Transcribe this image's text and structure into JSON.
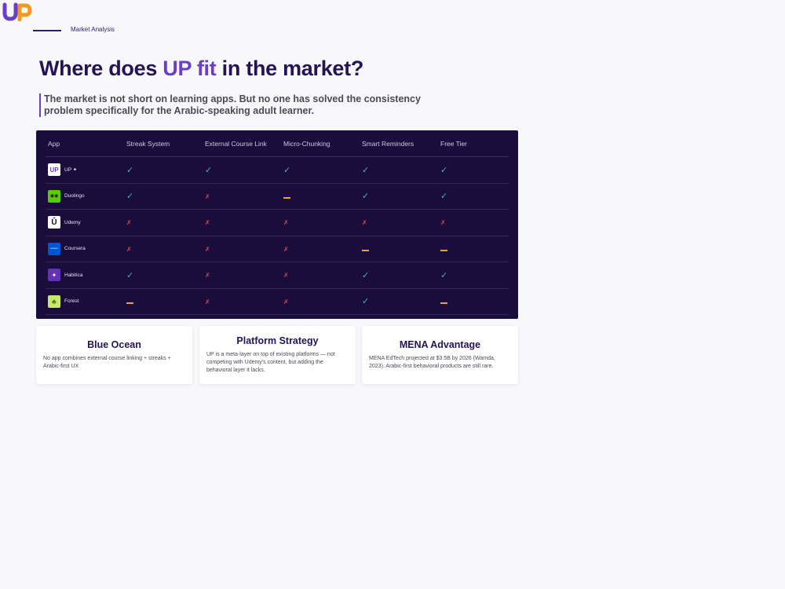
{
  "brand": {
    "logo_text": "UP",
    "colors": {
      "purple": "#6a3fc7",
      "orange": "#f39a1e",
      "dark": "#241453"
    }
  },
  "header": {
    "section_label": "Market Analysis",
    "title_before": "Where does ",
    "title_highlight": "UP fit",
    "title_after": " in the market?",
    "subtitle": "The market is not short on learning apps. But no one has solved the consistency problem specifically for the Arabic-speaking adult learner."
  },
  "table": {
    "columns": [
      "App",
      "Streak System",
      "External Course Link",
      "Micro-Chunking",
      "Smart Reminders",
      "Free Tier"
    ],
    "marks": {
      "yes": "✓",
      "no": "✗",
      "partial": ""
    },
    "rows": [
      {
        "app": "UP ✦",
        "icon": "up-logo-icon",
        "icon_text": "UP",
        "icon_color": "#ffffff",
        "values": [
          "yes",
          "yes",
          "yes",
          "yes",
          "yes"
        ]
      },
      {
        "app": "Duolingo",
        "icon": "duolingo-owl-icon",
        "icon_text": "◉◉",
        "icon_color": "#58cc02",
        "values": [
          "yes",
          "no",
          "partial",
          "yes",
          "yes"
        ]
      },
      {
        "app": "Udemy",
        "icon": "udemy-logo-icon",
        "icon_text": "Û",
        "icon_color": "#ffffff",
        "values": [
          "no",
          "no",
          "no",
          "no",
          "no"
        ]
      },
      {
        "app": "Coursera",
        "icon": "coursera-logo-icon",
        "icon_text": "coursera",
        "icon_color": "#0056d2",
        "values": [
          "no",
          "no",
          "no",
          "partial",
          "partial"
        ]
      },
      {
        "app": "Habitica",
        "icon": "habitica-logo-icon",
        "icon_text": "✦",
        "icon_color": "#6133b4",
        "values": [
          "yes",
          "no",
          "no",
          "yes",
          "yes"
        ]
      },
      {
        "app": "Forest",
        "icon": "forest-app-icon",
        "icon_text": "♣",
        "icon_color": "#c7e86a",
        "values": [
          "partial",
          "no",
          "no",
          "yes",
          "partial"
        ]
      }
    ]
  },
  "cards": [
    {
      "title": "Blue Ocean",
      "body": "No app combines external course linking + streaks + Arabic-first UX"
    },
    {
      "title": "Platform Strategy",
      "body": "UP is a meta-layer on top of existing platforms — not competing with Udemy's content, but adding the behavioral layer it lacks."
    },
    {
      "title": "MENA Advantage",
      "body": "MENA EdTech projected at $3.5B by 2026 (Wamda, 2023). Arabic-first behavioral products are still rare."
    }
  ]
}
